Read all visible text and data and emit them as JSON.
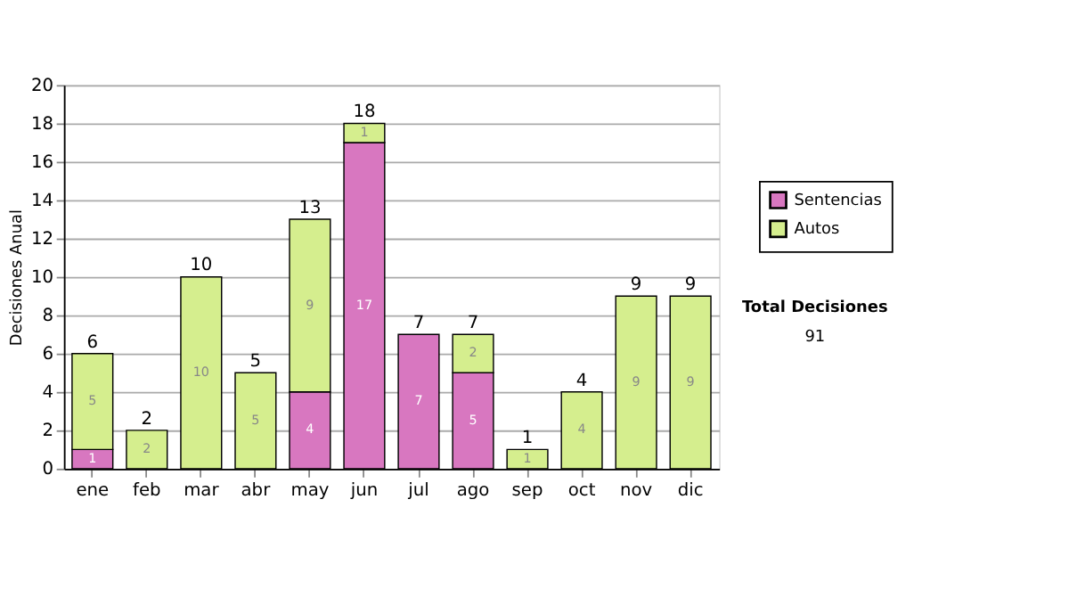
{
  "chart_data": {
    "type": "bar",
    "stacked": true,
    "ylabel": "Decisiones Anual",
    "categories": [
      "ene",
      "feb",
      "mar",
      "abr",
      "may",
      "jun",
      "jul",
      "ago",
      "sep",
      "oct",
      "nov",
      "dic"
    ],
    "series": [
      {
        "name": "Sentencias",
        "color": "#d877c0",
        "values": [
          1,
          0,
          0,
          0,
          4,
          17,
          7,
          5,
          0,
          0,
          0,
          0
        ],
        "value_labels": [
          "1",
          null,
          null,
          null,
          "4",
          "17",
          "7",
          "5",
          null,
          null,
          null,
          null
        ]
      },
      {
        "name": "Autos",
        "color": "#d5ee8e",
        "values": [
          5,
          2,
          10,
          5,
          9,
          1,
          0,
          2,
          1,
          4,
          9,
          9
        ],
        "value_labels": [
          "5",
          "2",
          "10",
          "5",
          "9",
          "1",
          null,
          "2",
          "1",
          "4",
          "9",
          "9"
        ]
      }
    ],
    "totals": [
      "6",
      "2",
      "10",
      "5",
      "13",
      "18",
      "7",
      "7",
      "1",
      "4",
      "9",
      "9"
    ],
    "ylim": [
      0,
      20
    ],
    "yticks": [
      0,
      2,
      4,
      6,
      8,
      10,
      12,
      14,
      16,
      18,
      20
    ],
    "grid": "y",
    "legend": "right",
    "annotations": [
      "Total Decisiones",
      "91"
    ]
  }
}
